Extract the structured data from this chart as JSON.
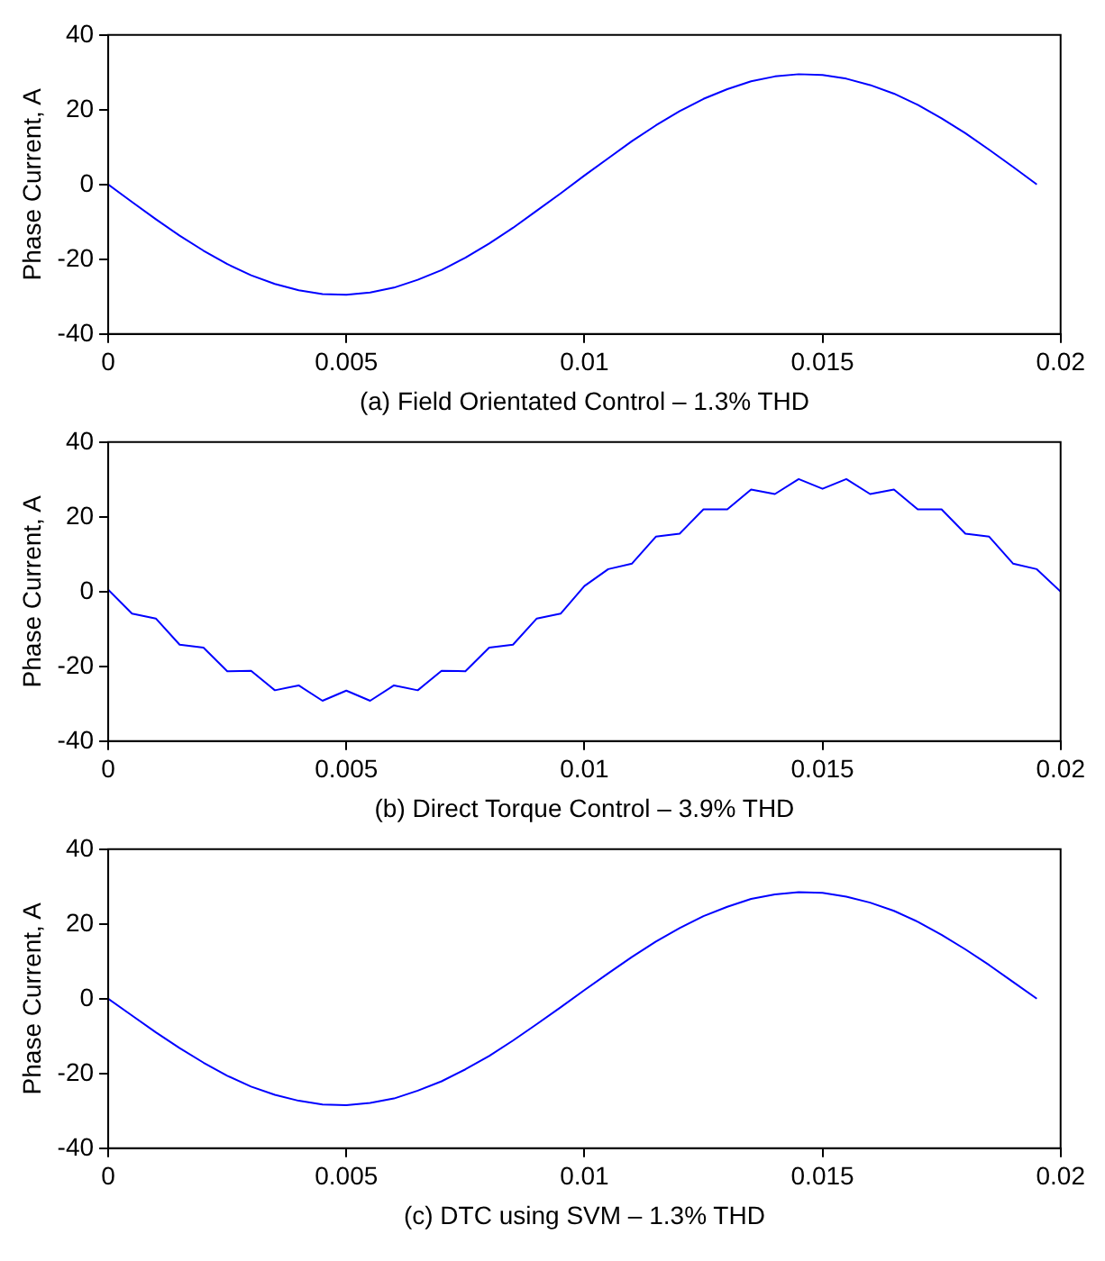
{
  "chart_data": [
    {
      "type": "line",
      "xlabel": "(a) Field Orientated Control – 1.3% THD",
      "ylabel": "Phase Current, A",
      "xlim": [
        0,
        0.02
      ],
      "xticks": [
        0,
        0.005,
        0.01,
        0.015,
        0.02
      ],
      "ylim": [
        -40,
        40
      ],
      "yticks": [
        -40,
        -20,
        0,
        20,
        40
      ],
      "marker": "none",
      "x": [
        0,
        0.0005,
        0.001,
        0.0015,
        0.002,
        0.0025,
        0.003,
        0.0035,
        0.004,
        0.0045,
        0.005,
        0.0055,
        0.006,
        0.0065,
        0.007,
        0.0075,
        0.008,
        0.0085,
        0.009,
        0.0095,
        0.01,
        0.0105,
        0.011,
        0.0115,
        0.012,
        0.0125,
        0.013,
        0.0135,
        0.014,
        0.0145,
        0.015,
        0.0155,
        0.016,
        0.0165,
        0.017,
        0.0175,
        0.018,
        0.0185,
        0.019,
        0.0195
      ],
      "series": [
        {
          "color": "#0000ff",
          "values": [
            0,
            -4.7,
            -9.3,
            -13.7,
            -17.7,
            -21.3,
            -24.3,
            -26.6,
            -28.3,
            -29.3,
            -29.5,
            -28.9,
            -27.6,
            -25.5,
            -22.9,
            -19.6,
            -15.8,
            -11.6,
            -7,
            -2.4,
            2.4,
            7,
            11.6,
            15.8,
            19.6,
            22.9,
            25.5,
            27.6,
            28.9,
            29.5,
            29.3,
            28.3,
            26.6,
            24.3,
            21.3,
            17.7,
            13.7,
            9.3,
            4.7,
            0
          ]
        }
      ]
    },
    {
      "type": "line",
      "xlabel": "(b) Direct Torque Control – 3.9% THD",
      "ylabel": "Phase Current, A",
      "xlim": [
        0,
        0.02
      ],
      "xticks": [
        0,
        0.005,
        0.01,
        0.015,
        0.02
      ],
      "ylim": [
        -40,
        40
      ],
      "yticks": [
        -40,
        -20,
        0,
        20,
        40
      ],
      "marker": "none",
      "x": [
        0,
        0.0005,
        0.001,
        0.0015,
        0.002,
        0.0025,
        0.003,
        0.0035,
        0.004,
        0.0045,
        0.005,
        0.0055,
        0.006,
        0.0065,
        0.007,
        0.0075,
        0.008,
        0.0085,
        0.009,
        0.0095,
        0.01,
        0.0105,
        0.011,
        0.0115,
        0.012,
        0.0125,
        0.013,
        0.0135,
        0.014,
        0.0145,
        0.015,
        0.0155,
        0.016,
        0.0165,
        0.017,
        0.0175,
        0.018,
        0.0185,
        0.019,
        0.0195,
        0.02
      ],
      "series": [
        {
          "color": "#0000ff",
          "values": [
            0.5,
            -5.9,
            -7.2,
            -14.2,
            -15,
            -21.3,
            -21.2,
            -26.4,
            -25.1,
            -29.2,
            -26.5,
            -29.2,
            -25.1,
            -26.4,
            -21.2,
            -21.3,
            -15,
            -14.2,
            -7.2,
            -5.9,
            1.5,
            6,
            7.5,
            14.7,
            15.5,
            22,
            22,
            27.3,
            26.1,
            30.1,
            27.5,
            30.1,
            26.1,
            27.3,
            22,
            22,
            15.5,
            14.7,
            7.5,
            6,
            0
          ]
        }
      ]
    },
    {
      "type": "line",
      "xlabel": "(c) DTC using SVM – 1.3% THD",
      "ylabel": "Phase Current, A",
      "xlim": [
        0,
        0.02
      ],
      "xticks": [
        0,
        0.005,
        0.01,
        0.015,
        0.02
      ],
      "ylim": [
        -40,
        40
      ],
      "yticks": [
        -40,
        -20,
        0,
        20,
        40
      ],
      "marker": "none",
      "x": [
        0,
        0.0005,
        0.001,
        0.0015,
        0.002,
        0.0025,
        0.003,
        0.0035,
        0.004,
        0.0045,
        0.005,
        0.0055,
        0.006,
        0.0065,
        0.007,
        0.0075,
        0.008,
        0.0085,
        0.009,
        0.0095,
        0.01,
        0.0105,
        0.011,
        0.0115,
        0.012,
        0.0125,
        0.013,
        0.0135,
        0.014,
        0.0145,
        0.015,
        0.0155,
        0.016,
        0.0165,
        0.017,
        0.0175,
        0.018,
        0.0185,
        0.019,
        0.0195
      ],
      "series": [
        {
          "color": "#0000ff",
          "values": [
            0,
            -4.5,
            -9,
            -13.2,
            -17.1,
            -20.6,
            -23.5,
            -25.7,
            -27.3,
            -28.3,
            -28.5,
            -27.9,
            -26.7,
            -24.6,
            -22.1,
            -18.9,
            -15.3,
            -11.2,
            -6.8,
            -2.3,
            2.3,
            6.8,
            11.2,
            15.3,
            18.9,
            22.1,
            24.6,
            26.7,
            27.9,
            28.5,
            28.3,
            27.3,
            25.7,
            23.5,
            20.6,
            17.1,
            13.2,
            9,
            4.5,
            0
          ]
        }
      ]
    }
  ]
}
